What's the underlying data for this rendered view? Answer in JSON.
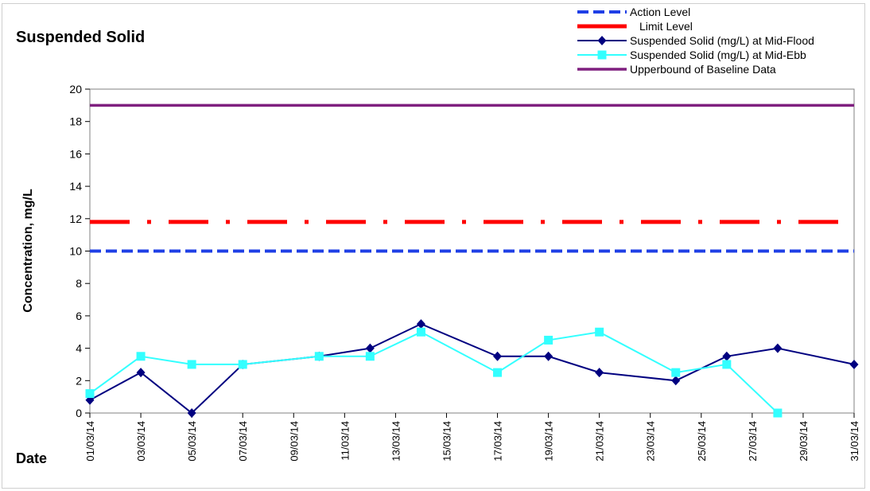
{
  "chart_data": {
    "type": "line",
    "title": "Suspended Solid",
    "xlabel": "Date",
    "ylabel": "Concentration, mg/L",
    "x_ticks": [
      "01/03/14",
      "03/03/14",
      "05/03/14",
      "07/03/14",
      "09/03/14",
      "11/03/14",
      "13/03/14",
      "15/03/14",
      "17/03/14",
      "19/03/14",
      "21/03/14",
      "23/03/14",
      "25/03/14",
      "27/03/14",
      "29/03/14",
      "31/03/14"
    ],
    "xlim": [
      "01/03/14",
      "31/03/14"
    ],
    "ylim": [
      0,
      20
    ],
    "y_ticks": [
      0,
      2,
      4,
      6,
      8,
      10,
      12,
      14,
      16,
      18,
      20
    ],
    "grid": false,
    "legend_position": "top-right",
    "series": [
      {
        "name": "Action Level",
        "style": "dashed",
        "color": "#1f3fe6",
        "points": [
          {
            "x": "01/03/14",
            "y": 10
          },
          {
            "x": "31/03/14",
            "y": 10
          }
        ]
      },
      {
        "name": "Limit Level",
        "style": "dash-dot",
        "color": "#ff0000",
        "points": [
          {
            "x": "01/03/14",
            "y": 11.8
          },
          {
            "x": "31/03/14",
            "y": 11.8
          }
        ]
      },
      {
        "name": "Suspended Solid (mg/L) at Mid-Flood",
        "style": "solid",
        "marker": "diamond",
        "color": "#000080",
        "points": [
          {
            "x": "01/03/14",
            "y": 0.8
          },
          {
            "x": "03/03/14",
            "y": 2.5
          },
          {
            "x": "05/03/14",
            "y": 0
          },
          {
            "x": "07/03/14",
            "y": 3
          },
          {
            "x": "10/03/14",
            "y": 3.5
          },
          {
            "x": "12/03/14",
            "y": 4
          },
          {
            "x": "14/03/14",
            "y": 5.5
          },
          {
            "x": "17/03/14",
            "y": 3.5
          },
          {
            "x": "19/03/14",
            "y": 3.5
          },
          {
            "x": "21/03/14",
            "y": 2.5
          },
          {
            "x": "24/03/14",
            "y": 2
          },
          {
            "x": "26/03/14",
            "y": 3.5
          },
          {
            "x": "28/03/14",
            "y": 4
          },
          {
            "x": "31/03/14",
            "y": 3
          }
        ]
      },
      {
        "name": "Suspended Solid (mg/L) at Mid-Ebb",
        "style": "solid",
        "marker": "square",
        "color": "#33ffff",
        "points": [
          {
            "x": "01/03/14",
            "y": 1.2
          },
          {
            "x": "03/03/14",
            "y": 3.5
          },
          {
            "x": "05/03/14",
            "y": 3
          },
          {
            "x": "07/03/14",
            "y": 3
          },
          {
            "x": "10/03/14",
            "y": 3.5
          },
          {
            "x": "12/03/14",
            "y": 3.5
          },
          {
            "x": "14/03/14",
            "y": 5
          },
          {
            "x": "17/03/14",
            "y": 2.5
          },
          {
            "x": "19/03/14",
            "y": 4.5
          },
          {
            "x": "21/03/14",
            "y": 5
          },
          {
            "x": "24/03/14",
            "y": 2.5
          },
          {
            "x": "26/03/14",
            "y": 3
          },
          {
            "x": "28/03/14",
            "y": 0
          }
        ]
      },
      {
        "name": "Upperbound of Baseline Data",
        "style": "solid",
        "color": "#7f1f7f",
        "points": [
          {
            "x": "01/03/14",
            "y": 19
          },
          {
            "x": "31/03/14",
            "y": 19
          }
        ]
      }
    ]
  }
}
